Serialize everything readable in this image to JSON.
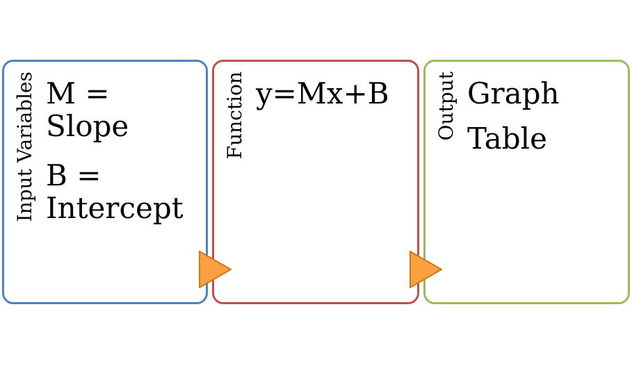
{
  "colors": {
    "input_border": "#4f81bd",
    "function_border": "#c0504d",
    "output_border": "#9bbb59",
    "arrow_fill": "#f9a040",
    "arrow_stroke": "#d07818"
  },
  "boxes": [
    {
      "label": "Input Variables",
      "items": [
        "M =\nSlope",
        "B =\nIntercept"
      ]
    },
    {
      "label": "Function",
      "items": [
        "y=Mx+B"
      ]
    },
    {
      "label": "Output",
      "items": [
        "Graph",
        "Table"
      ]
    }
  ],
  "arrows": [
    "arrow-right-icon",
    "arrow-right-icon"
  ]
}
